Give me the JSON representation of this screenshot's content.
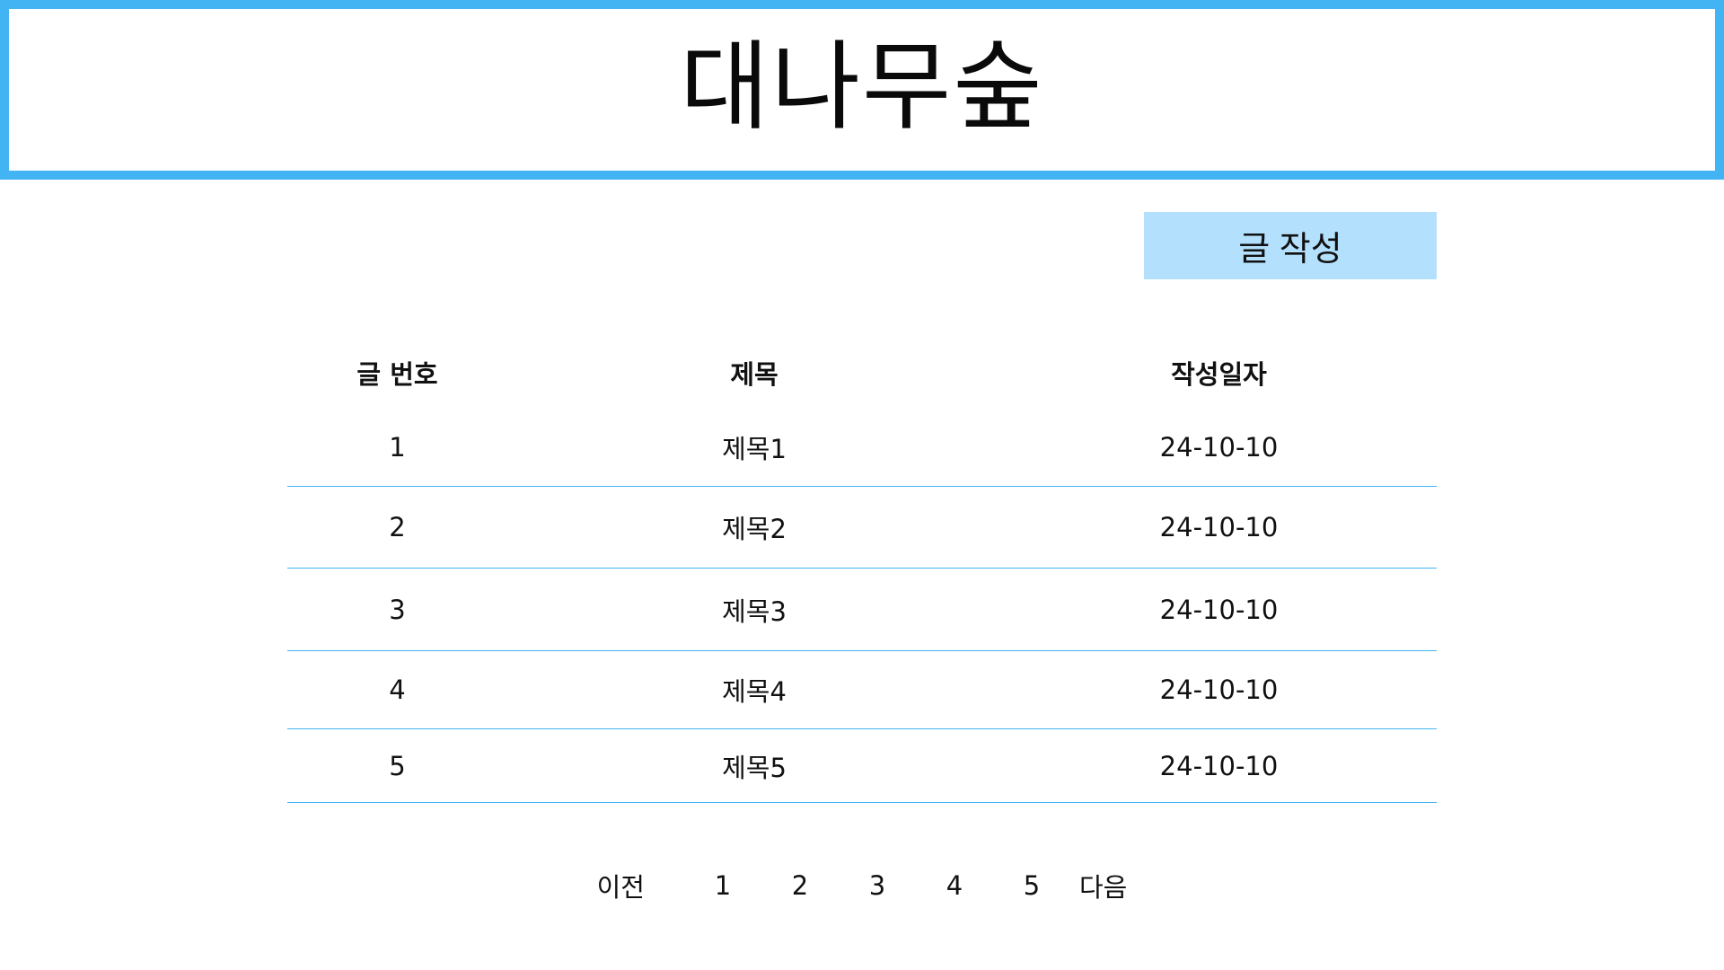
{
  "header": {
    "site_title": "대나무숲"
  },
  "actions": {
    "write_label": "글 작성"
  },
  "board": {
    "columns": {
      "number": "글 번호",
      "title": "제목",
      "date": "작성일자"
    },
    "rows": [
      {
        "number": "1",
        "title": "제목1",
        "date": "24-10-10"
      },
      {
        "number": "2",
        "title": "제목2",
        "date": "24-10-10"
      },
      {
        "number": "3",
        "title": "제목3",
        "date": "24-10-10"
      },
      {
        "number": "4",
        "title": "제목4",
        "date": "24-10-10"
      },
      {
        "number": "5",
        "title": "제목5",
        "date": "24-10-10"
      }
    ]
  },
  "pagination": {
    "prev_label": "이전",
    "next_label": "다음",
    "pages": [
      "1",
      "2",
      "3",
      "4",
      "5"
    ]
  },
  "colors": {
    "accent": "#42b4f4",
    "button_bg": "#b3e0fd"
  }
}
